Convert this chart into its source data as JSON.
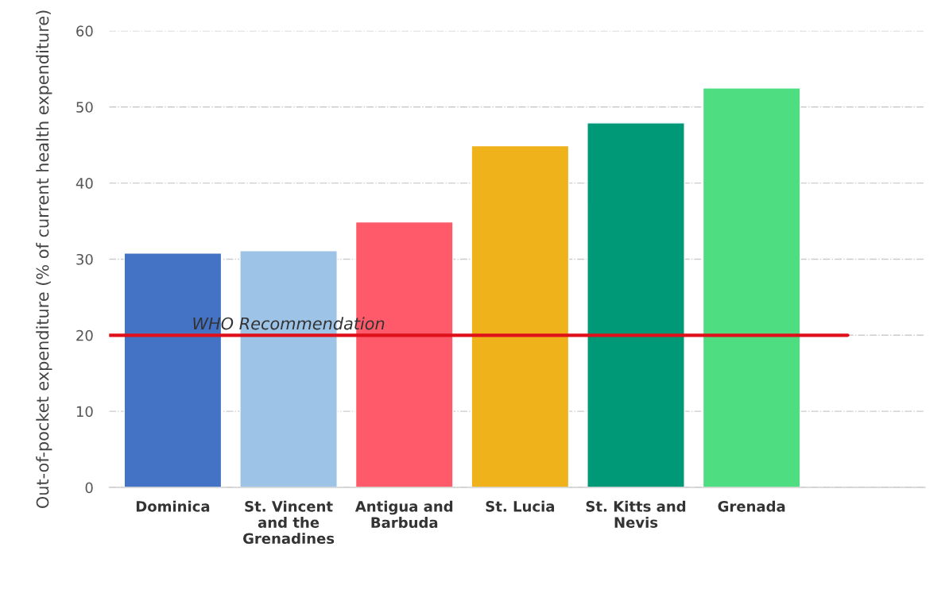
{
  "chart_data": {
    "type": "bar",
    "ylabel": "Out-of-pocket expenditure (% of current health expenditure)",
    "categories": [
      "Dominica",
      "St. Vincent and the Grenadines",
      "Antigua and Barbuda",
      "St. Lucia",
      "St. Kitts and Nevis",
      "Grenada"
    ],
    "values": [
      30.8,
      31.1,
      34.9,
      44.9,
      47.9,
      52.5
    ],
    "colors": [
      "#4472c4",
      "#9dc3e6",
      "#ff5a6a",
      "#f0b21b",
      "#009978",
      "#4fdd82"
    ],
    "ylim": [
      0,
      60
    ],
    "yticks": [
      0,
      10,
      20,
      30,
      40,
      50,
      60
    ],
    "grid": "y",
    "ref_lines": [
      {
        "axis": "y",
        "value": 20,
        "label": "WHO Recommendation",
        "color": "#e0101a",
        "line_style": "solid"
      }
    ]
  }
}
